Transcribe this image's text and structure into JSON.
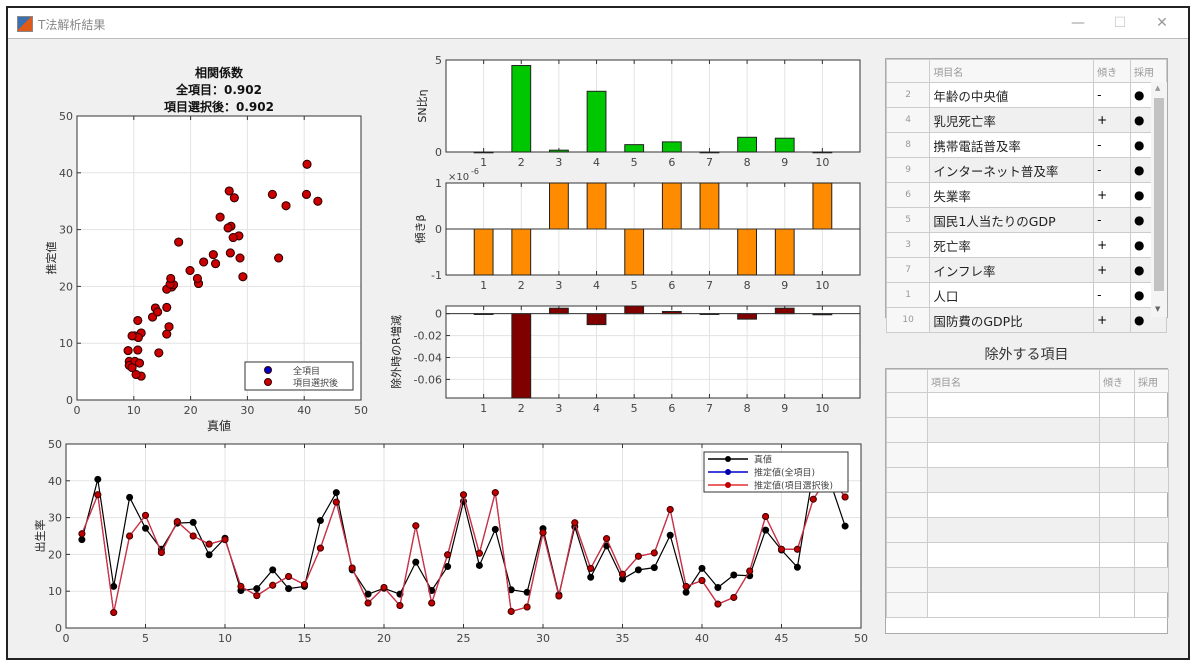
{
  "window": {
    "title": "T法解析結果",
    "minimize": "—",
    "maximize": "☐",
    "close": "✕"
  },
  "scatter_title": {
    "line1": "相関係数",
    "line2": "全項目：0.902",
    "line3": "項目選択後：0.902"
  },
  "chart_data": [
    {
      "id": "scatter",
      "type": "scatter",
      "xlabel": "真値",
      "ylabel": "推定値",
      "xlim": [
        0,
        50
      ],
      "ylim": [
        0,
        50
      ],
      "xticks": [
        0,
        10,
        20,
        30,
        40,
        50
      ],
      "yticks": [
        0,
        10,
        20,
        30,
        40,
        50
      ],
      "grid": true,
      "legend": "bottom-right",
      "series": [
        {
          "name": "全項目",
          "color": "#0000cc",
          "x": [
            24,
            40.4,
            11.3,
            35.5,
            27.1,
            21.4,
            28.5,
            28.7,
            19.9,
            24.4,
            10.2,
            10.7,
            15.8,
            10.7,
            11.3,
            29.2,
            36.8,
            15.8,
            9.2,
            10.8,
            9.2,
            17.9,
            10.2,
            16.7,
            34.4,
            17,
            26.8,
            10.4,
            9.7,
            27,
            9,
            27.5,
            13.8,
            22.3,
            13.3,
            15.8,
            16.4,
            25.2,
            9.7,
            16.2,
            11,
            14.4,
            14.2,
            26.6,
            21.2,
            16.5,
            42.4,
            40.5,
            27.7
          ],
          "y": [
            25.6,
            36.2,
            4.2,
            25,
            30.6,
            20.5,
            28.9,
            25,
            22.8,
            24,
            11.3,
            8.8,
            11.6,
            14,
            11.8,
            21.7,
            34.2,
            16.3,
            6.8,
            11,
            6.1,
            27.8,
            6.8,
            19.9,
            36.2,
            20.3,
            36.8,
            4.5,
            5.7,
            25.9,
            8.7,
            28.6,
            16.2,
            24.3,
            14.6,
            19.5,
            20.4,
            32.2,
            11.3,
            12.9,
            6.5,
            8.3,
            15.5,
            30.3,
            21.4,
            21.4,
            35,
            41.5,
            35.6
          ]
        },
        {
          "name": "項目選択後",
          "color": "#cc0000",
          "x": [
            24,
            40.4,
            11.3,
            35.5,
            27.1,
            21.4,
            28.5,
            28.7,
            19.9,
            24.4,
            10.2,
            10.7,
            15.8,
            10.7,
            11.3,
            29.2,
            36.8,
            15.8,
            9.2,
            10.8,
            9.2,
            17.9,
            10.2,
            16.7,
            34.4,
            17,
            26.8,
            10.4,
            9.7,
            27,
            9,
            27.5,
            13.8,
            22.3,
            13.3,
            15.8,
            16.4,
            25.2,
            9.7,
            16.2,
            11,
            14.4,
            14.2,
            26.6,
            21.2,
            16.5,
            42.4,
            40.5,
            27.7
          ],
          "y": [
            25.6,
            36.2,
            4.2,
            25,
            30.6,
            20.5,
            28.9,
            25,
            22.8,
            24,
            11.3,
            8.8,
            11.6,
            14,
            11.8,
            21.7,
            34.2,
            16.3,
            6.8,
            11,
            6.1,
            27.8,
            6.8,
            19.9,
            36.2,
            20.3,
            36.8,
            4.5,
            5.7,
            25.9,
            8.7,
            28.6,
            16.2,
            24.3,
            14.6,
            19.5,
            20.4,
            32.2,
            11.3,
            12.9,
            6.5,
            8.3,
            15.5,
            30.3,
            21.4,
            21.4,
            35,
            41.5,
            35.6
          ]
        }
      ]
    },
    {
      "id": "sn",
      "type": "bar",
      "ylabel": "SN比η",
      "categories": [
        1,
        2,
        3,
        4,
        5,
        6,
        7,
        8,
        9,
        10
      ],
      "values": [
        0,
        4.7,
        0.1,
        3.3,
        0.4,
        0.55,
        0,
        0.8,
        0.75,
        0
      ],
      "xlim": [
        0,
        11
      ],
      "ylim": [
        0,
        5
      ],
      "yticks": [
        0,
        5
      ],
      "color": "#00c800"
    },
    {
      "id": "slope",
      "type": "bar",
      "ylabel": "傾きβ",
      "exponent_label": "×10",
      "exponent": "-6",
      "categories": [
        1,
        2,
        3,
        4,
        5,
        6,
        7,
        8,
        9,
        10
      ],
      "values": [
        -1e-06,
        -1e-06,
        1e-06,
        1e-06,
        -1e-06,
        1e-06,
        1e-06,
        -1e-06,
        -1e-06,
        1e-06
      ],
      "xlim": [
        0,
        11
      ],
      "ylim": [
        -1e-06,
        1e-06
      ],
      "yticks": [
        -1,
        0,
        1
      ],
      "color": "#ff8c00"
    },
    {
      "id": "rdelta",
      "type": "bar",
      "ylabel": "除外時のR増減",
      "categories": [
        1,
        2,
        3,
        4,
        5,
        6,
        7,
        8,
        9,
        10
      ],
      "values": [
        0,
        -0.08,
        0.005,
        -0.01,
        0.007,
        0.002,
        0,
        -0.005,
        0.005,
        -0.001
      ],
      "xlim": [
        0,
        11
      ],
      "ylim": [
        -0.077,
        0.007
      ],
      "yticks": [
        -0.06,
        -0.04,
        -0.02,
        0
      ],
      "color": "#800000"
    },
    {
      "id": "line",
      "type": "line",
      "ylabel": "出生率",
      "xlim": [
        0,
        50
      ],
      "ylim": [
        0,
        50
      ],
      "xticks": [
        0,
        5,
        10,
        15,
        20,
        25,
        30,
        35,
        40,
        45,
        50
      ],
      "yticks": [
        0,
        10,
        20,
        30,
        40,
        50
      ],
      "grid": true,
      "legend": "top-right",
      "x": [
        1,
        2,
        3,
        4,
        5,
        6,
        7,
        8,
        9,
        10,
        11,
        12,
        13,
        14,
        15,
        16,
        17,
        18,
        19,
        20,
        21,
        22,
        23,
        24,
        25,
        26,
        27,
        28,
        29,
        30,
        31,
        32,
        33,
        34,
        35,
        36,
        37,
        38,
        39,
        40,
        41,
        42,
        43,
        44,
        45,
        46,
        47,
        48,
        49
      ],
      "series": [
        {
          "name": "真値",
          "color": "#000000",
          "values": [
            24,
            40.4,
            11.3,
            35.5,
            27.1,
            21.4,
            28.5,
            28.7,
            19.9,
            24.4,
            10.2,
            10.7,
            15.8,
            10.7,
            11.3,
            29.2,
            36.8,
            15.8,
            9.2,
            10.8,
            9.2,
            17.9,
            10.2,
            16.7,
            34.4,
            17,
            26.8,
            10.4,
            9.7,
            27,
            9,
            27.5,
            13.8,
            22.3,
            13.3,
            15.8,
            16.4,
            25.2,
            9.7,
            16.2,
            11,
            14.4,
            14.2,
            26.6,
            21.2,
            16.5,
            42.4,
            40.5,
            27.7
          ]
        },
        {
          "name": "推定値(全項目)",
          "color": "#0000cc",
          "values": [
            25.6,
            36.2,
            4.2,
            25,
            30.6,
            20.5,
            28.9,
            25,
            22.8,
            24,
            11.3,
            8.8,
            11.6,
            14,
            11.8,
            21.7,
            34.2,
            16.3,
            6.8,
            11,
            6.1,
            27.8,
            6.8,
            19.9,
            36.2,
            20.3,
            36.8,
            4.5,
            5.7,
            25.9,
            8.7,
            28.6,
            16.2,
            24.3,
            14.6,
            19.5,
            20.4,
            32.2,
            11.3,
            12.9,
            6.5,
            8.3,
            15.5,
            30.3,
            21.4,
            21.4,
            35,
            41.5,
            35.6
          ]
        },
        {
          "name": "推定値(項目選択後)",
          "color": "#e03030",
          "values": [
            25.6,
            36.2,
            4.2,
            25,
            30.6,
            20.5,
            28.9,
            25,
            22.8,
            24,
            11.3,
            8.8,
            11.6,
            14,
            11.8,
            21.7,
            34.2,
            16.3,
            6.8,
            11,
            6.1,
            27.8,
            6.8,
            19.9,
            36.2,
            20.3,
            36.8,
            4.5,
            5.7,
            25.9,
            8.7,
            28.6,
            16.2,
            24.3,
            14.6,
            19.5,
            20.4,
            32.2,
            11.3,
            12.9,
            6.5,
            8.3,
            15.5,
            30.3,
            21.4,
            21.4,
            35,
            41.5,
            35.6
          ]
        }
      ]
    }
  ],
  "selected_table": {
    "headers": [
      "",
      "項目名",
      "傾き",
      "採用"
    ],
    "rows": [
      [
        "2",
        "年齢の中央値",
        "-",
        "●"
      ],
      [
        "4",
        "乳児死亡率",
        "+",
        "●"
      ],
      [
        "8",
        "携帯電話普及率",
        "-",
        "●"
      ],
      [
        "9",
        "インターネット普及率",
        "-",
        "●"
      ],
      [
        "6",
        "失業率",
        "+",
        "●"
      ],
      [
        "5",
        "国民1人当たりのGDP",
        "-",
        "●"
      ],
      [
        "3",
        "死亡率",
        "+",
        "●"
      ],
      [
        "7",
        "インフレ率",
        "+",
        "●"
      ],
      [
        "1",
        "人口",
        "-",
        "●"
      ],
      [
        "10",
        "国防費のGDP比",
        "+",
        "●"
      ]
    ]
  },
  "excluded_table": {
    "title": "除外する項目",
    "headers": [
      "",
      "項目名",
      "傾き",
      "採用"
    ],
    "rows": [
      [
        "",
        "",
        "",
        ""
      ],
      [
        "",
        "",
        "",
        ""
      ],
      [
        "",
        "",
        "",
        ""
      ],
      [
        "",
        "",
        "",
        ""
      ],
      [
        "",
        "",
        "",
        ""
      ],
      [
        "",
        "",
        "",
        ""
      ],
      [
        "",
        "",
        "",
        ""
      ],
      [
        "",
        "",
        "",
        ""
      ],
      [
        "",
        "",
        "",
        ""
      ]
    ]
  }
}
